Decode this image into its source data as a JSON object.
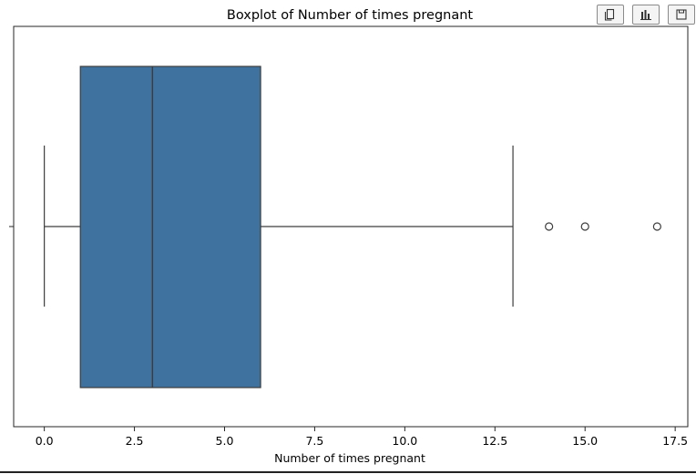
{
  "toolbar": {
    "buttons": [
      {
        "icon": "copy-icon"
      },
      {
        "icon": "bar-chart-icon"
      },
      {
        "icon": "save-icon"
      }
    ]
  },
  "chart_data": {
    "type": "boxplot",
    "title": "Boxplot of Number of times pregnant",
    "xlabel": "Number of times pregnant",
    "ylabel": "",
    "xlim": [
      -0.85,
      17.85
    ],
    "xticks": [
      0.0,
      2.5,
      5.0,
      7.5,
      10.0,
      12.5,
      15.0,
      17.5
    ],
    "xtick_labels": [
      "0.0",
      "2.5",
      "5.0",
      "7.5",
      "10.0",
      "12.5",
      "15.0",
      "17.5"
    ],
    "grid": false,
    "orientation": "horizontal",
    "box": {
      "whisker_low": 0,
      "q1": 1,
      "median": 3,
      "q3": 6,
      "whisker_high": 13,
      "outliers": [
        14,
        15,
        17
      ],
      "color": "#4072a0"
    }
  }
}
